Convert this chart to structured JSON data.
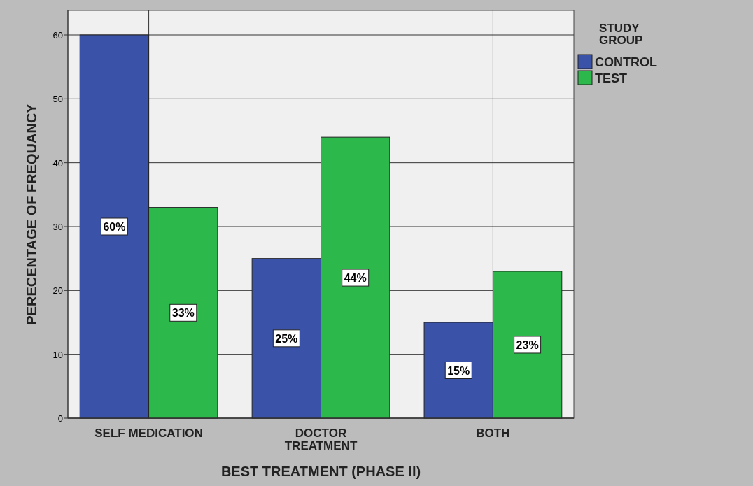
{
  "chart_data": {
    "type": "bar",
    "xlabel": "BEST TREATMENT (PHASE II)",
    "ylabel": "PERECENTAGE OF FREQUANCY",
    "legend_title": "STUDY GROUP",
    "categories": [
      "SELF MEDICATION",
      "DOCTOR TREATMENT",
      "BOTH"
    ],
    "series": [
      {
        "name": "CONTROL",
        "color": "#3a53a8",
        "values": [
          60,
          25,
          15
        ],
        "value_labels": [
          "60%",
          "25%",
          "15%"
        ]
      },
      {
        "name": "TEST",
        "color": "#2db84b",
        "values": [
          33,
          44,
          23
        ],
        "value_labels": [
          "33%",
          "44%",
          "23%"
        ]
      }
    ],
    "ylim": [
      0,
      60
    ],
    "yticks": [
      0,
      10,
      20,
      30,
      40,
      50,
      60
    ],
    "grid": true,
    "legend": "top right"
  }
}
